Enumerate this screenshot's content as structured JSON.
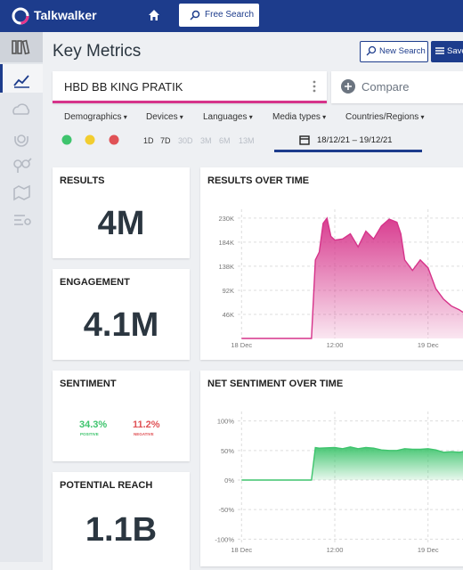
{
  "header": {
    "brand": "Talkwalker",
    "search_button": "Free Search"
  },
  "page": {
    "title": "Key Metrics",
    "new_search": "New Search",
    "save": "Save"
  },
  "query": {
    "text": "HBD BB KING PRATIK",
    "compare": "Compare"
  },
  "filters": [
    "Demographics",
    "Devices",
    "Languages",
    "Media types",
    "Countries/Regions"
  ],
  "ranges": [
    "1D",
    "7D",
    "30D",
    "3M",
    "6M",
    "13M"
  ],
  "date_range": "18/12/21 – 19/12/21",
  "metrics": [
    {
      "label": "RESULTS",
      "value": "4M"
    },
    {
      "label": "ENGAGEMENT",
      "value": "4.1M"
    },
    {
      "label": "SENTIMENT",
      "positive": "34.3%",
      "positive_label": "POSITIVE",
      "negative": "11.2%",
      "negative_label": "NEGATIVE"
    },
    {
      "label": "POTENTIAL REACH",
      "value": "1.1B"
    }
  ],
  "charts": [
    {
      "type": "area",
      "title": "RESULTS OVER TIME",
      "color": "#d6338a",
      "grid": true,
      "x": [
        0,
        9,
        9.5,
        10,
        10.5,
        11,
        11.5,
        12,
        13,
        14,
        15,
        16,
        17,
        18,
        19,
        20,
        20.5,
        21,
        22,
        23,
        24,
        25,
        26,
        27,
        28,
        28.5
      ],
      "values": [
        0,
        0,
        150000,
        165000,
        220000,
        230000,
        195000,
        188000,
        190000,
        200000,
        175000,
        205000,
        190000,
        215000,
        228000,
        222000,
        200000,
        150000,
        130000,
        150000,
        135000,
        95000,
        75000,
        62000,
        55000,
        50000
      ],
      "xlim": [
        -4.5,
        28.5
      ],
      "xticks": [
        {
          "value": 0,
          "label": "18 Dec"
        },
        {
          "value": 12,
          "label": "12:00"
        },
        {
          "value": 24,
          "label": "19 Dec"
        }
      ],
      "ylim": [
        0,
        240000
      ],
      "yticks": [
        {
          "value": 46000,
          "label": "46K"
        },
        {
          "value": 92000,
          "label": "92K"
        },
        {
          "value": 138000,
          "label": "138K"
        },
        {
          "value": 184000,
          "label": "184K"
        },
        {
          "value": 230000,
          "label": "230K"
        }
      ]
    },
    {
      "type": "area",
      "title": "NET SENTIMENT OVER TIME",
      "color": "#3ec46d",
      "grid": true,
      "x": [
        0,
        9,
        9.5,
        10,
        12,
        13,
        14,
        15,
        16,
        17,
        18,
        19,
        20,
        21,
        22,
        23,
        24,
        25,
        26,
        27,
        28,
        28.5
      ],
      "values": [
        0,
        0,
        55,
        54,
        55,
        53,
        56,
        53,
        55,
        54,
        51,
        50,
        50,
        53,
        52,
        52,
        53,
        51,
        47,
        48,
        47,
        48
      ],
      "xlim": [
        -4.5,
        28.5
      ],
      "xticks": [
        {
          "value": 0,
          "label": "18 Dec"
        },
        {
          "value": 12,
          "label": "12:00"
        },
        {
          "value": 24,
          "label": "19 Dec"
        }
      ],
      "ylim": [
        -110,
        110
      ],
      "yticks": [
        {
          "value": 100,
          "label": "100%"
        },
        {
          "value": 50,
          "label": "50%"
        },
        {
          "value": 0,
          "label": "0%"
        },
        {
          "value": -50,
          "label": "-50%"
        },
        {
          "value": -100,
          "label": "-100%"
        }
      ]
    }
  ]
}
